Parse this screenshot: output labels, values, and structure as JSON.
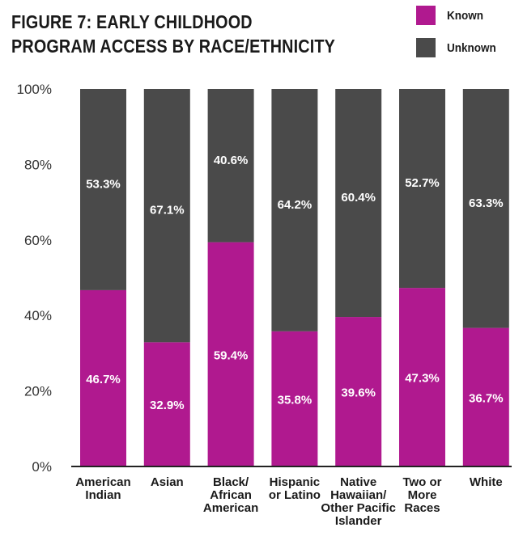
{
  "title_lines": [
    "FIGURE 7: EARLY CHILDHOOD",
    "PROGRAM ACCESS BY RACE/ETHNICITY"
  ],
  "legend": [
    {
      "label": "Known",
      "color": "#b0198f"
    },
    {
      "label": "Unknown",
      "color": "#4a4a4a"
    }
  ],
  "chart_data": {
    "type": "bar",
    "stacked": true,
    "title": "FIGURE 7: EARLY CHILDHOOD PROGRAM ACCESS BY RACE/ETHNICITY",
    "categories": [
      [
        "American",
        "Indian"
      ],
      [
        "Asian"
      ],
      [
        "Black/",
        "African",
        "American"
      ],
      [
        "Hispanic",
        "or Latino"
      ],
      [
        "Native",
        "Hawaiian/",
        "Other Pacific",
        "Islander"
      ],
      [
        "Two or",
        "More",
        "Races"
      ],
      [
        "White"
      ]
    ],
    "series": [
      {
        "name": "Known",
        "color": "#b0198f",
        "values": [
          46.7,
          32.9,
          59.4,
          35.8,
          39.6,
          47.3,
          36.7
        ],
        "labels": [
          "46.7%",
          "32.9%",
          "59.4%",
          "35.8%",
          "39.6%",
          "47.3%",
          "36.7%"
        ]
      },
      {
        "name": "Unknown",
        "color": "#4a4a4a",
        "values": [
          53.3,
          67.1,
          40.6,
          64.2,
          60.4,
          52.7,
          63.3
        ],
        "labels": [
          "53.3%",
          "67.1%",
          "40.6%",
          "64.2%",
          "60.4%",
          "52.7%",
          "63.3%"
        ]
      }
    ],
    "yticks": [
      "0%",
      "20%",
      "40%",
      "60%",
      "80%",
      "100%"
    ],
    "ylim": [
      0,
      100
    ],
    "xlabel": "",
    "ylabel": "",
    "grid": false,
    "legend_position": "top-right"
  }
}
